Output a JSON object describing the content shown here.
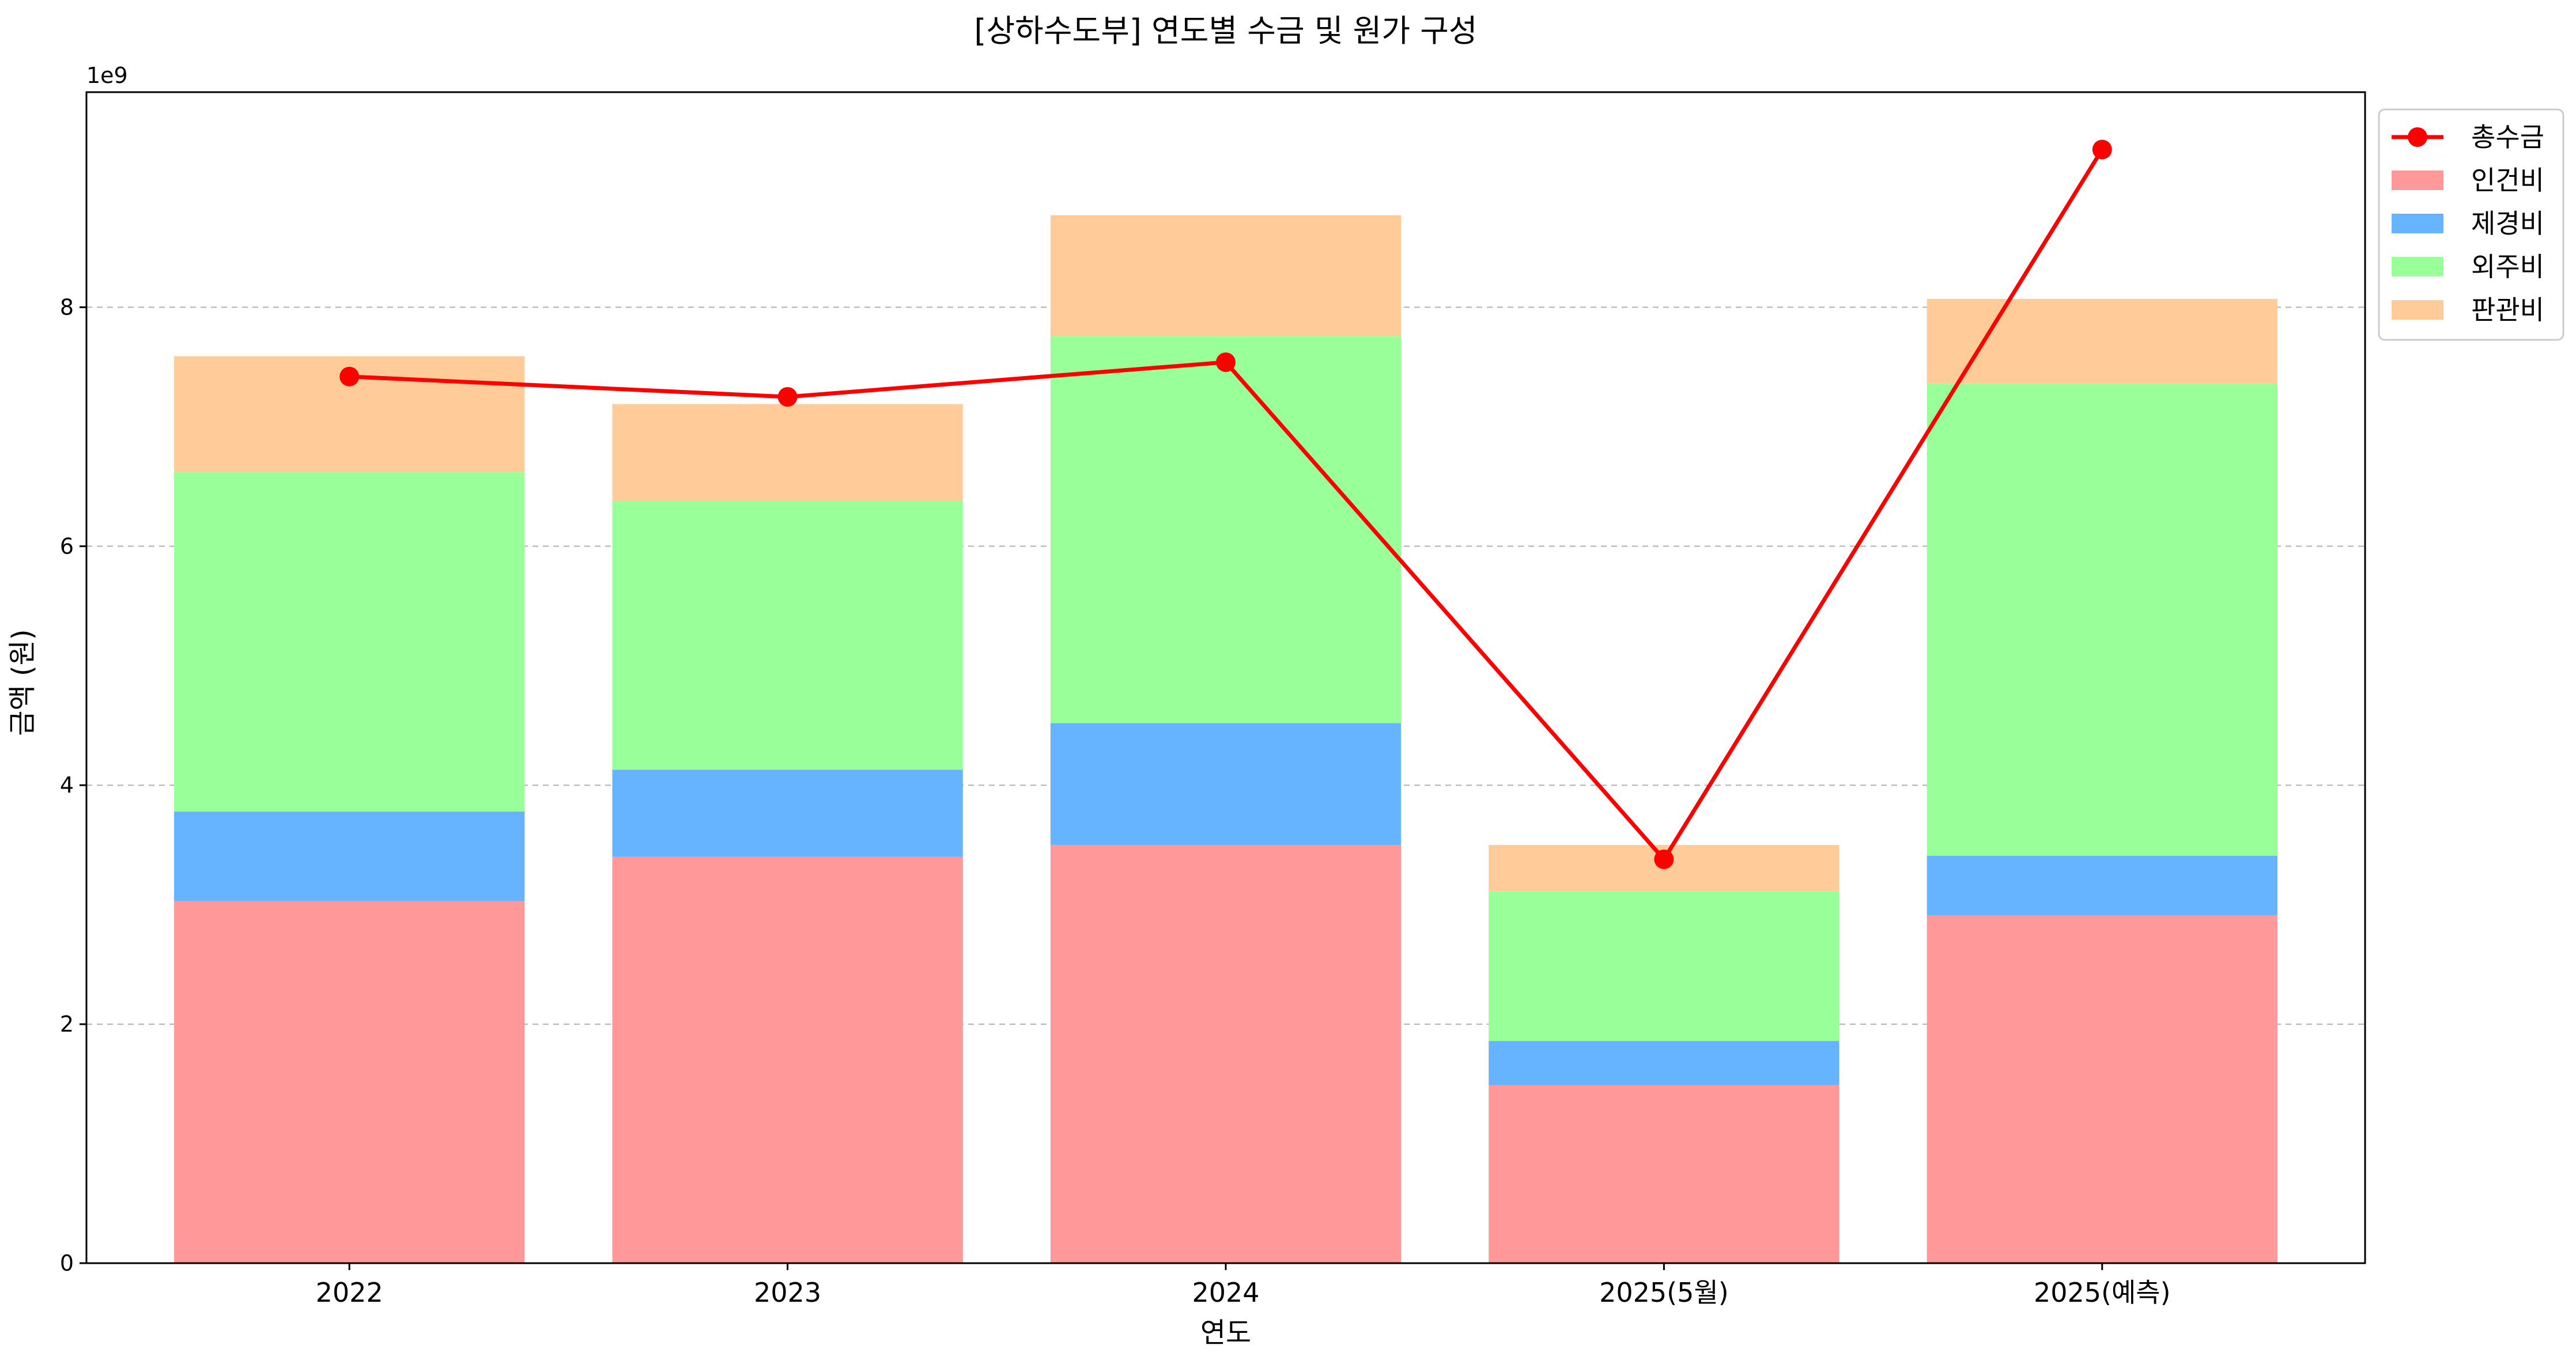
{
  "chart_data": {
    "type": "bar",
    "stacked": true,
    "title": "[상하수도부] 연도별 수금 및 원가 구성",
    "xlabel": "연도",
    "ylabel": "금액 (원)",
    "y_offset_label": "1e9",
    "categories": [
      "2022",
      "2023",
      "2024",
      "2025(5월)",
      "2025(예측)"
    ],
    "ylim": [
      0,
      9.8
    ],
    "yticks": [
      0,
      2,
      4,
      6,
      8
    ],
    "ytick_labels": [
      "0",
      "2",
      "4",
      "6",
      "8"
    ],
    "grid": "horizontal dashed",
    "legend_position": "outside top-right",
    "series": [
      {
        "name": "인건비",
        "color": "#ff9999",
        "values": [
          3.03,
          3.4,
          3.5,
          1.49,
          2.91
        ]
      },
      {
        "name": "제경비",
        "color": "#66b3ff",
        "values": [
          0.75,
          0.73,
          1.02,
          0.37,
          0.5
        ]
      },
      {
        "name": "외주비",
        "color": "#99ff99",
        "values": [
          2.84,
          2.25,
          3.24,
          1.25,
          3.95
        ]
      },
      {
        "name": "판관비",
        "color": "#ffcc99",
        "values": [
          0.97,
          0.81,
          1.01,
          0.39,
          0.71
        ]
      }
    ],
    "line_series": {
      "name": "총수금",
      "color": "#ff0000",
      "values": [
        7.42,
        7.25,
        7.54,
        3.38,
        9.32
      ]
    }
  }
}
